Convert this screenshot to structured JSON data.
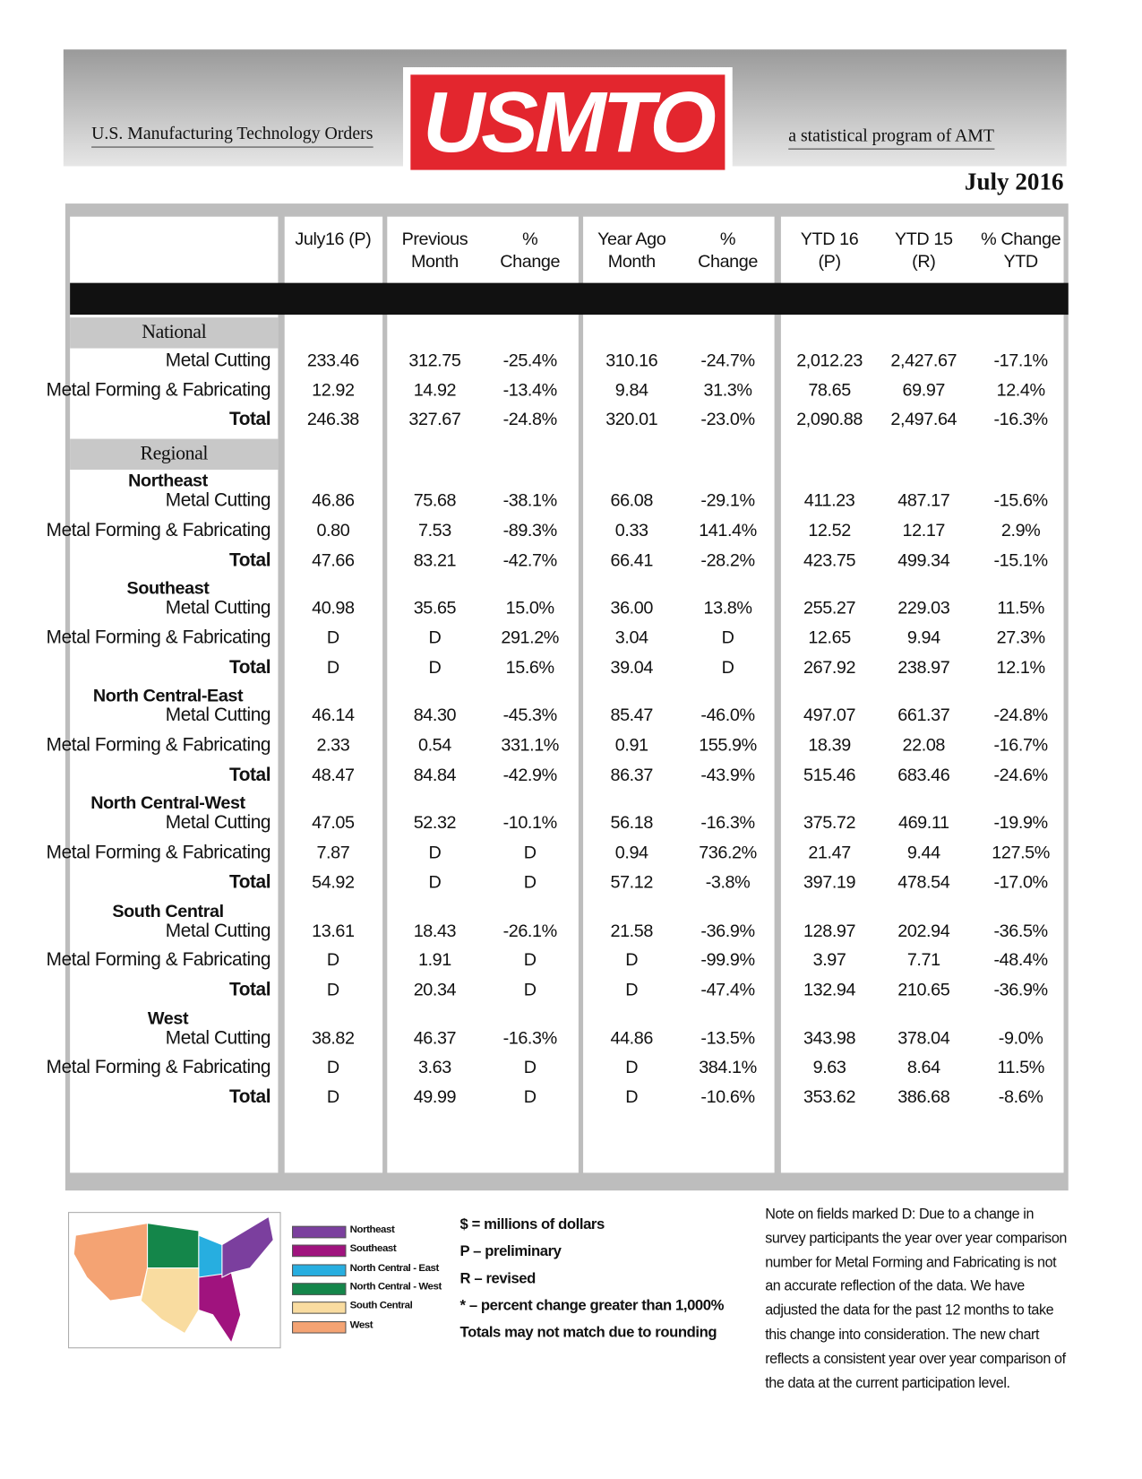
{
  "header": {
    "left_text": "U.S. Manufacturing Technology Orders",
    "logo": "USMTO",
    "right_text": "a statistical program of AMT",
    "date": "July 2016"
  },
  "table": {
    "columns": [
      [
        "July16 (P)"
      ],
      [
        "Previous",
        "Month"
      ],
      [
        "%",
        "Change"
      ],
      [
        "Year Ago",
        "Month"
      ],
      [
        "%",
        "Change"
      ],
      [
        "YTD 16",
        "(P)"
      ],
      [
        "YTD 15",
        "(R)"
      ],
      [
        "% Change",
        "YTD"
      ]
    ],
    "sections": [
      {
        "title": "National",
        "groups": [
          {
            "name": null,
            "rows": [
              {
                "label": "Metal Cutting",
                "values": [
                  "233.46",
                  "312.75",
                  "-25.4%",
                  "310.16",
                  "-24.7%",
                  "2,012.23",
                  "2,427.67",
                  "-17.1%"
                ]
              },
              {
                "label": "Metal Forming & Fabricating",
                "values": [
                  "12.92",
                  "14.92",
                  "-13.4%",
                  "9.84",
                  "31.3%",
                  "78.65",
                  "69.97",
                  "12.4%"
                ]
              },
              {
                "label": "Total",
                "values": [
                  "246.38",
                  "327.67",
                  "-24.8%",
                  "320.01",
                  "-23.0%",
                  "2,090.88",
                  "2,497.64",
                  "-16.3%"
                ]
              }
            ]
          }
        ]
      },
      {
        "title": "Regional",
        "groups": [
          {
            "name": "Northeast",
            "rows": [
              {
                "label": "Metal Cutting",
                "values": [
                  "46.86",
                  "75.68",
                  "-38.1%",
                  "66.08",
                  "-29.1%",
                  "411.23",
                  "487.17",
                  "-15.6%"
                ]
              },
              {
                "label": "Metal Forming & Fabricating",
                "values": [
                  "0.80",
                  "7.53",
                  "-89.3%",
                  "0.33",
                  "141.4%",
                  "12.52",
                  "12.17",
                  "2.9%"
                ]
              },
              {
                "label": "Total",
                "values": [
                  "47.66",
                  "83.21",
                  "-42.7%",
                  "66.41",
                  "-28.2%",
                  "423.75",
                  "499.34",
                  "-15.1%"
                ]
              }
            ]
          },
          {
            "name": "Southeast",
            "rows": [
              {
                "label": "Metal Cutting",
                "values": [
                  "40.98",
                  "35.65",
                  "15.0%",
                  "36.00",
                  "13.8%",
                  "255.27",
                  "229.03",
                  "11.5%"
                ]
              },
              {
                "label": "Metal Forming & Fabricating",
                "values": [
                  "D",
                  "D",
                  "291.2%",
                  "3.04",
                  "D",
                  "12.65",
                  "9.94",
                  "27.3%"
                ]
              },
              {
                "label": "Total",
                "values": [
                  "D",
                  "D",
                  "15.6%",
                  "39.04",
                  "D",
                  "267.92",
                  "238.97",
                  "12.1%"
                ]
              }
            ]
          },
          {
            "name": "North Central-East",
            "rows": [
              {
                "label": "Metal Cutting",
                "values": [
                  "46.14",
                  "84.30",
                  "-45.3%",
                  "85.47",
                  "-46.0%",
                  "497.07",
                  "661.37",
                  "-24.8%"
                ]
              },
              {
                "label": "Metal Forming & Fabricating",
                "values": [
                  "2.33",
                  "0.54",
                  "331.1%",
                  "0.91",
                  "155.9%",
                  "18.39",
                  "22.08",
                  "-16.7%"
                ]
              },
              {
                "label": "Total",
                "values": [
                  "48.47",
                  "84.84",
                  "-42.9%",
                  "86.37",
                  "-43.9%",
                  "515.46",
                  "683.46",
                  "-24.6%"
                ]
              }
            ]
          },
          {
            "name": "North Central-West",
            "rows": [
              {
                "label": "Metal Cutting",
                "values": [
                  "47.05",
                  "52.32",
                  "-10.1%",
                  "56.18",
                  "-16.3%",
                  "375.72",
                  "469.11",
                  "-19.9%"
                ]
              },
              {
                "label": "Metal Forming & Fabricating",
                "values": [
                  "7.87",
                  "D",
                  "D",
                  "0.94",
                  "736.2%",
                  "21.47",
                  "9.44",
                  "127.5%"
                ]
              },
              {
                "label": "Total",
                "values": [
                  "54.92",
                  "D",
                  "D",
                  "57.12",
                  "-3.8%",
                  "397.19",
                  "478.54",
                  "-17.0%"
                ]
              }
            ]
          },
          {
            "name": "South Central",
            "rows": [
              {
                "label": "Metal Cutting",
                "values": [
                  "13.61",
                  "18.43",
                  "-26.1%",
                  "21.58",
                  "-36.9%",
                  "128.97",
                  "202.94",
                  "-36.5%"
                ]
              },
              {
                "label": "Metal Forming & Fabricating",
                "values": [
                  "D",
                  "1.91",
                  "D",
                  "D",
                  "-99.9%",
                  "3.97",
                  "7.71",
                  "-48.4%"
                ]
              },
              {
                "label": "Total",
                "values": [
                  "D",
                  "20.34",
                  "D",
                  "D",
                  "-47.4%",
                  "132.94",
                  "210.65",
                  "-36.9%"
                ]
              }
            ]
          },
          {
            "name": "West",
            "rows": [
              {
                "label": "Metal Cutting",
                "values": [
                  "38.82",
                  "46.37",
                  "-16.3%",
                  "44.86",
                  "-13.5%",
                  "343.98",
                  "378.04",
                  "-9.0%"
                ]
              },
              {
                "label": "Metal Forming & Fabricating",
                "values": [
                  "D",
                  "3.63",
                  "D",
                  "D",
                  "384.1%",
                  "9.63",
                  "8.64",
                  "11.5%"
                ]
              },
              {
                "label": "Total",
                "values": [
                  "D",
                  "49.99",
                  "D",
                  "D",
                  "-10.6%",
                  "353.62",
                  "386.68",
                  "-8.6%"
                ]
              }
            ]
          }
        ]
      }
    ]
  },
  "legend": [
    {
      "label": "Northeast",
      "color": "#7b3f9e"
    },
    {
      "label": "Southeast",
      "color": "#a0137e"
    },
    {
      "label": "North Central - East",
      "color": "#27aee0"
    },
    {
      "label": "North Central - West",
      "color": "#14864a"
    },
    {
      "label": "South Central",
      "color": "#f9dca0"
    },
    {
      "label": "West",
      "color": "#f4a373"
    }
  ],
  "notes": [
    "$ = millions of dollars",
    "P – preliminary",
    "R – revised",
    "* – percent change greater than 1,000%",
    "Totals may not match due to rounding"
  ],
  "note_paragraph": "Note on fields marked D:  Due to a change in survey participants the year over year comparison number for Metal Forming and Fabricating is not an accurate reflection of the data. We have adjusted the data for the past 12 months to take this change into consideration. The new chart reflects a consistent year over year comparison of the data at the current participation level."
}
